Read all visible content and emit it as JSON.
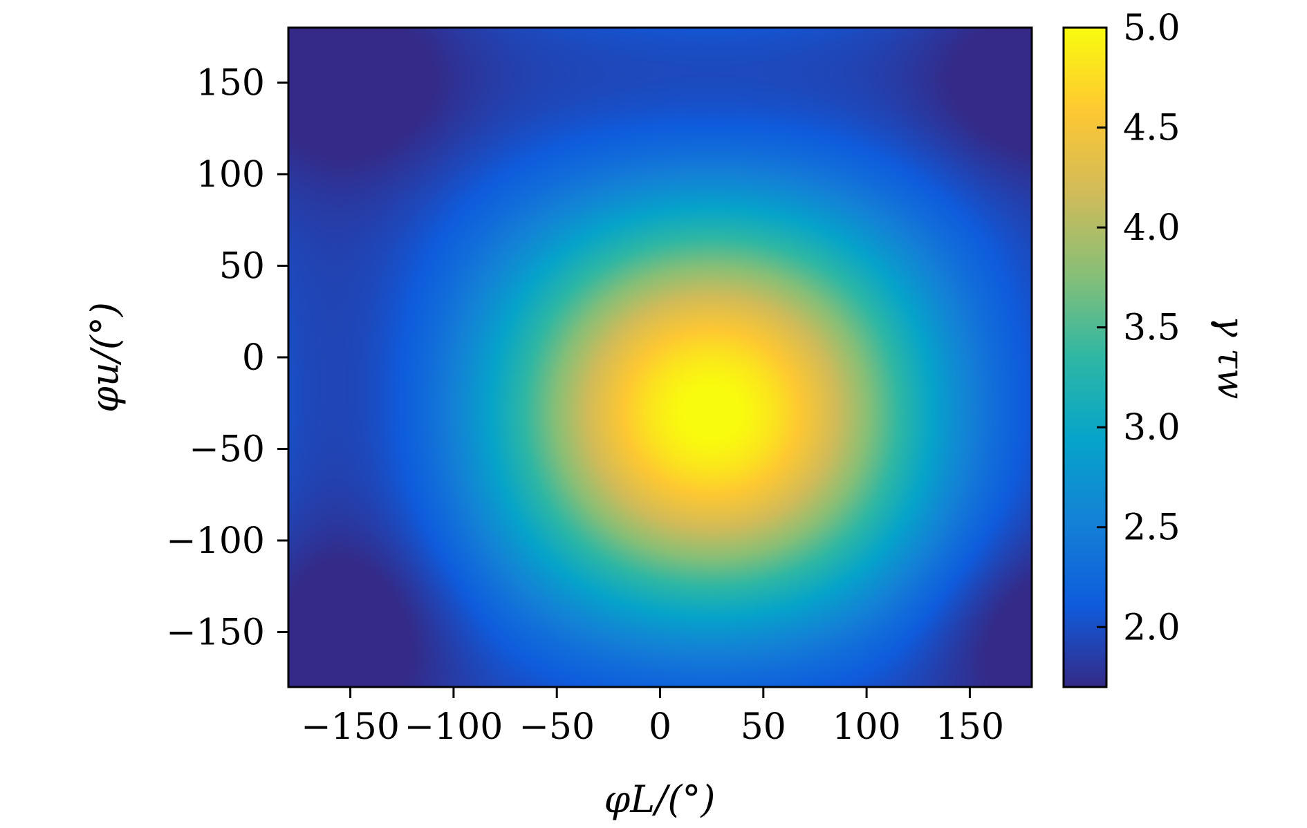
{
  "chart_data": {
    "type": "heatmap",
    "title": "",
    "xlabel": "φL/(°)",
    "ylabel": "φu/(°)",
    "colorbar_label": "γ τw",
    "xlim": [
      -180,
      180
    ],
    "ylim": [
      -180,
      180
    ],
    "x_ticks": [
      -150,
      -100,
      -50,
      0,
      50,
      100,
      150
    ],
    "y_ticks": [
      -150,
      -100,
      -50,
      0,
      50,
      100,
      150
    ],
    "x_tick_labels": [
      "−150",
      "−100",
      "−50",
      "0",
      "50",
      "100",
      "150"
    ],
    "y_tick_labels": [
      "−150",
      "−100",
      "−50",
      "0",
      "50",
      "100",
      "150"
    ],
    "colorbar": {
      "range": [
        1.7,
        5.0
      ],
      "ticks": [
        2.0,
        2.5,
        3.0,
        3.5,
        4.0,
        4.5,
        5.0
      ],
      "tick_labels": [
        "2.0",
        "2.5",
        "3.0",
        "3.5",
        "4.0",
        "4.5",
        "5.0"
      ],
      "colormap": [
        "#352a87",
        "#0f5cdd",
        "#1481d6",
        "#06a4ca",
        "#2eb7a4",
        "#87bf77",
        "#d1bb59",
        "#fec832",
        "#f9fb0e"
      ]
    },
    "field": {
      "peak": {
        "x": 25,
        "y": -30,
        "value": 5.0
      },
      "min_value": 1.7,
      "minima_corners": [
        [
          -150,
          150
        ],
        [
          180,
          150
        ],
        [
          -150,
          -150
        ],
        [
          180,
          -150
        ]
      ]
    },
    "grid": false
  }
}
